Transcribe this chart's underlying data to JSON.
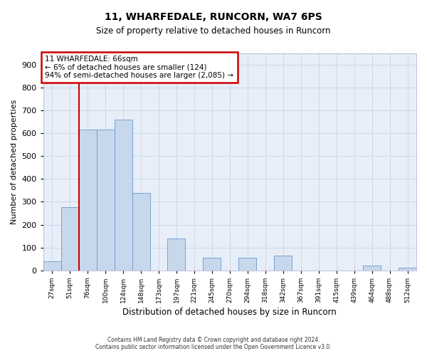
{
  "title": "11, WHARFEDALE, RUNCORN, WA7 6PS",
  "subtitle": "Size of property relative to detached houses in Runcorn",
  "xlabel": "Distribution of detached houses by size in Runcorn",
  "ylabel": "Number of detached properties",
  "bins": [
    "27sqm",
    "51sqm",
    "76sqm",
    "100sqm",
    "124sqm",
    "148sqm",
    "173sqm",
    "197sqm",
    "221sqm",
    "245sqm",
    "270sqm",
    "294sqm",
    "318sqm",
    "342sqm",
    "367sqm",
    "391sqm",
    "415sqm",
    "439sqm",
    "464sqm",
    "488sqm",
    "512sqm"
  ],
  "bar_heights": [
    40,
    275,
    615,
    615,
    660,
    340,
    0,
    140,
    0,
    55,
    0,
    55,
    0,
    65,
    0,
    0,
    0,
    0,
    20,
    0,
    10
  ],
  "bar_color": "#c8d8ec",
  "bar_edge_color": "#6699cc",
  "vline_x_label": "51sqm",
  "vline_color": "#cc0000",
  "annotation_text": "11 WHARFEDALE: 66sqm\n← 6% of detached houses are smaller (124)\n94% of semi-detached houses are larger (2,085) →",
  "annotation_box_color": "#ffffff",
  "annotation_box_edge_color": "#cc0000",
  "ylim": [
    0,
    950
  ],
  "yticks": [
    0,
    100,
    200,
    300,
    400,
    500,
    600,
    700,
    800,
    900
  ],
  "grid_color": "#ccd8e8",
  "background_color": "#e8eef8",
  "footer_line1": "Contains HM Land Registry data © Crown copyright and database right 2024.",
  "footer_line2": "Contains public sector information licensed under the Open Government Licence v3.0."
}
